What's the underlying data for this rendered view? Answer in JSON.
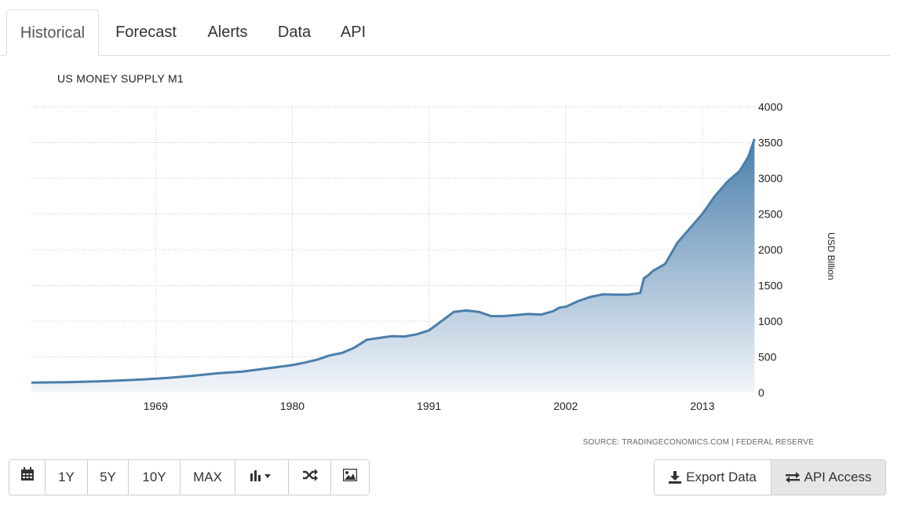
{
  "tabs": [
    {
      "label": "Historical",
      "active": true
    },
    {
      "label": "Forecast",
      "active": false
    },
    {
      "label": "Alerts",
      "active": false
    },
    {
      "label": "Data",
      "active": false
    },
    {
      "label": "API",
      "active": false
    }
  ],
  "colors": {
    "line": "#4a7eab",
    "fill_top": "#4a7eab",
    "fill_bottom": "#f3f6fa",
    "grid": "#c8c8c8"
  },
  "chart_data": {
    "type": "area",
    "title": "US MONEY SUPPLY M1",
    "ylabel": "USD Billion",
    "source": "SOURCE: TRADINGECONOMICS.COM | FEDERAL RESERVE",
    "x_ticks": [
      1969,
      1980,
      1991,
      2002,
      2013
    ],
    "y_ticks": [
      0,
      500,
      1000,
      1500,
      2000,
      2500,
      3000,
      3500,
      4000
    ],
    "ylim": [
      0,
      4000
    ],
    "xlim": [
      1959,
      2017.3
    ],
    "grid": true,
    "series": [
      {
        "x": [
          1959,
          1962,
          1965,
          1968,
          1970,
          1972,
          1974,
          1976,
          1978,
          1980,
          1981,
          1982,
          1983,
          1984,
          1985,
          1986,
          1987,
          1988,
          1989,
          1990,
          1991,
          1992,
          1993,
          1994,
          1995,
          1996,
          1997,
          1998,
          1999,
          2000,
          2001,
          2001.5,
          2002,
          2003,
          2004,
          2005,
          2006,
          2007,
          2008,
          2008.3,
          2008.7,
          2009,
          2010,
          2011,
          2011.5,
          2012,
          2013,
          2014,
          2015,
          2016,
          2016.7,
          2017.2
        ],
        "values": [
          140,
          145,
          160,
          185,
          205,
          235,
          270,
          295,
          340,
          385,
          420,
          460,
          520,
          555,
          630,
          740,
          765,
          790,
          785,
          815,
          870,
          1000,
          1130,
          1150,
          1130,
          1070,
          1070,
          1085,
          1100,
          1090,
          1140,
          1190,
          1200,
          1280,
          1340,
          1375,
          1370,
          1370,
          1395,
          1600,
          1650,
          1700,
          1800,
          2100,
          2200,
          2300,
          2500,
          2750,
          2950,
          3100,
          3300,
          3550
        ]
      }
    ]
  },
  "toolbar": {
    "calendar_icon": "calendar-icon",
    "ranges": [
      "1Y",
      "5Y",
      "10Y",
      "MAX"
    ],
    "chart_type_icon": "bar-chart-icon",
    "compare_icon": "shuffle-icon",
    "image_icon": "image-icon"
  },
  "actions": {
    "export_label": "Export Data",
    "api_label": "API Access"
  }
}
